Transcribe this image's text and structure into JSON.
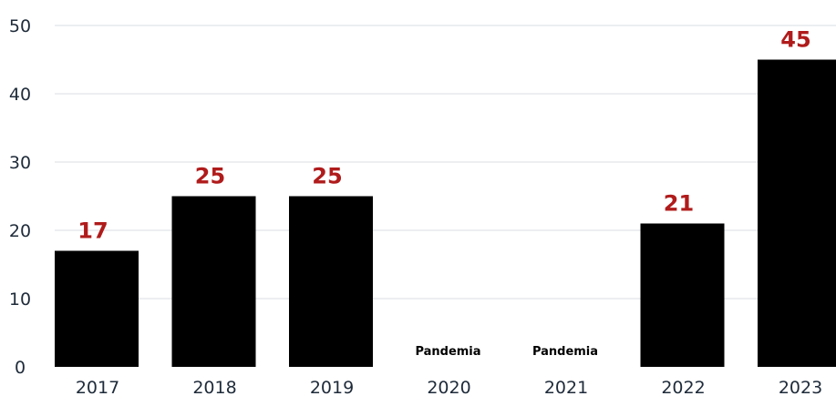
{
  "chart_data": {
    "type": "bar",
    "title": "",
    "xlabel": "",
    "ylabel": "",
    "ylim": [
      0,
      50
    ],
    "yticks": [
      0,
      10,
      20,
      30,
      40,
      50
    ],
    "grid": true,
    "categories": [
      "2017",
      "2018",
      "2019",
      "2020",
      "2021",
      "2022",
      "2023"
    ],
    "values": [
      17,
      25,
      25,
      null,
      null,
      21,
      45
    ],
    "data_labels": [
      "17",
      "25",
      "25",
      "",
      "",
      "21",
      "45"
    ],
    "notes": [
      "",
      "",
      "",
      "Pandemia",
      "Pandemia",
      "",
      ""
    ],
    "colors": {
      "bar": "#000000",
      "data_label": "#b01b1b",
      "grid": "#d8dde3",
      "text": "#1f2b3a"
    }
  }
}
